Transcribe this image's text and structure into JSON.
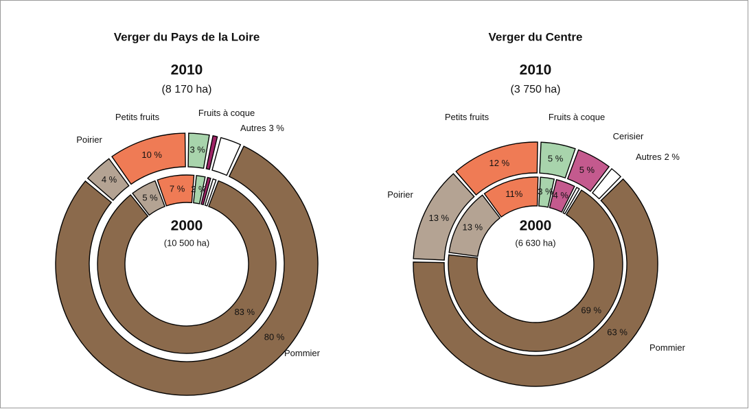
{
  "chart_data": [
    {
      "type": "pie",
      "title": "Verger du Pays de la Loire",
      "categories": [
        "Pommier",
        "Poirier",
        "Petits fruits",
        "Fruits à coque",
        null,
        "Autres"
      ],
      "colors": [
        "#8b6a4c",
        "#b4a393",
        "#ef7b55",
        "#a8d4ac",
        "#9e2466",
        "#ffffff"
      ],
      "series": [
        {
          "name": "2010",
          "area": "(8 170 ha)",
          "values": [
            80,
            4,
            10,
            3,
            1,
            3
          ],
          "value_labels": [
            "80 %",
            "4 %",
            "10 %",
            "3 %",
            null,
            "3 %"
          ]
        },
        {
          "name": "2000",
          "area": "(10 500 ha)",
          "values": [
            83,
            5,
            7,
            2,
            1,
            1
          ],
          "value_labels": [
            "83 %",
            "5 %",
            "7 %",
            "2 %",
            null,
            null
          ]
        }
      ]
    },
    {
      "type": "pie",
      "title": "Verger du Centre",
      "categories": [
        "Pommier",
        "Poirier",
        "Petits fruits",
        "Fruits à coque",
        "Cerisier",
        "Autres"
      ],
      "colors": [
        "#8b6a4c",
        "#b4a393",
        "#ef7b55",
        "#a8d4ac",
        "#c45a8e",
        "#ffffff"
      ],
      "series": [
        {
          "name": "2010",
          "area": "(3 750 ha)",
          "values": [
            63,
            13,
            12,
            5,
            5,
            2
          ],
          "value_labels": [
            "63 %",
            "13 %",
            "12 %",
            "5 %",
            "5 %",
            "2 %"
          ]
        },
        {
          "name": "2000",
          "area": "(6 630 ha)",
          "values": [
            69,
            13,
            11,
            3,
            4,
            1
          ],
          "value_labels": [
            "69 %",
            "13 %",
            "11%",
            "3 %",
            "4 %",
            null
          ]
        }
      ]
    }
  ]
}
